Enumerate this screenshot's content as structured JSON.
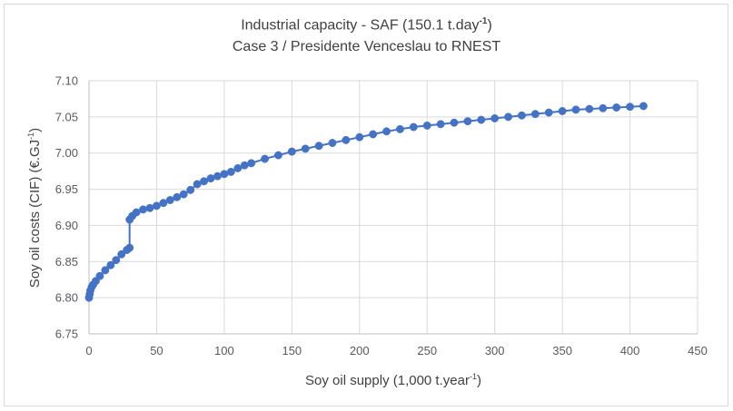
{
  "chart_data": {
    "type": "line",
    "title_line1": "Industrial capacity - SAF (150.1 t.day",
    "title_line1_sup": "-1",
    "title_line1_end": ")",
    "title_line2": "Case 3 / Presidente Venceslau to RNEST",
    "xlabel": "Soy oil supply (1,000 t.year",
    "xlabel_sup": "-1",
    "xlabel_end": ")",
    "ylabel": "Soy oil costs (CIF) (€.GJ",
    "ylabel_sup": "-1",
    "ylabel_end": ")",
    "xlim": [
      0,
      450
    ],
    "ylim": [
      6.75,
      7.1
    ],
    "xticks": [
      "0",
      "50",
      "100",
      "150",
      "200",
      "250",
      "300",
      "350",
      "400",
      "450"
    ],
    "yticks": [
      "6.75",
      "6.80",
      "6.85",
      "6.90",
      "6.95",
      "7.00",
      "7.05",
      "7.10"
    ],
    "grid": true,
    "series_color": "#4472c4",
    "series": [
      {
        "x": [
          0,
          0.5,
          1,
          2,
          3,
          5,
          8,
          12,
          16,
          20,
          24,
          28,
          30,
          30,
          32,
          35,
          40,
          45,
          50,
          55,
          60,
          65,
          70,
          75,
          80,
          85,
          90,
          95,
          100,
          105,
          110,
          115,
          120,
          130,
          140,
          150,
          160,
          170,
          180,
          190,
          200,
          210,
          220,
          230,
          240,
          250,
          260,
          270,
          280,
          290,
          300,
          310,
          320,
          330,
          340,
          350,
          360,
          370,
          380,
          390,
          400,
          410
        ],
        "y": [
          6.8,
          6.805,
          6.81,
          6.815,
          6.818,
          6.823,
          6.83,
          6.838,
          6.845,
          6.852,
          6.86,
          6.866,
          6.869,
          6.908,
          6.913,
          6.918,
          6.922,
          6.924,
          6.927,
          6.931,
          6.935,
          6.939,
          6.943,
          6.949,
          6.957,
          6.961,
          6.965,
          6.968,
          6.971,
          6.974,
          6.979,
          6.983,
          6.986,
          6.992,
          6.997,
          7.002,
          7.006,
          7.01,
          7.014,
          7.018,
          7.022,
          7.026,
          7.03,
          7.033,
          7.036,
          7.038,
          7.04,
          7.042,
          7.044,
          7.046,
          7.048,
          7.05,
          7.052,
          7.054,
          7.056,
          7.058,
          7.06,
          7.061,
          7.062,
          7.063,
          7.064,
          7.065
        ]
      }
    ]
  }
}
